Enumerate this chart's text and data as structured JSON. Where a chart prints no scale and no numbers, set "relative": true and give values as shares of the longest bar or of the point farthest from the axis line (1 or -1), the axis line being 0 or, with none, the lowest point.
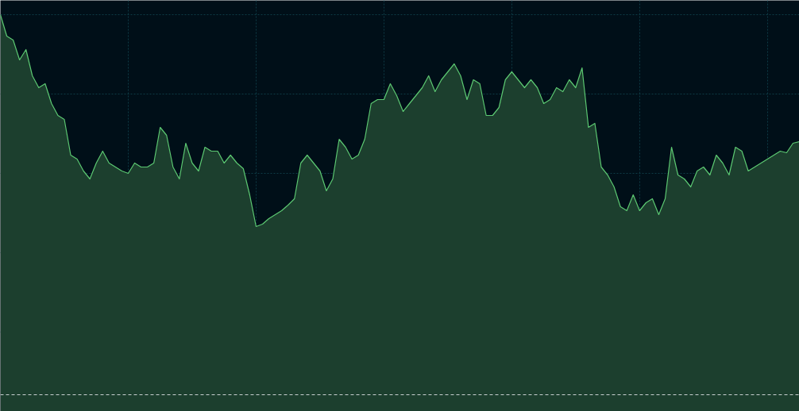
{
  "chart_data": {
    "type": "area",
    "relative": true,
    "grid": true,
    "categories": [
      null,
      null,
      null,
      null,
      null,
      null,
      null,
      null,
      null,
      null,
      null,
      null,
      null,
      null,
      null,
      null,
      null,
      null,
      null,
      null,
      null,
      null,
      null,
      null,
      null,
      null,
      null,
      null,
      null,
      null,
      null,
      null,
      null,
      null,
      null,
      null,
      null,
      null,
      null,
      null,
      null,
      null,
      null,
      null,
      null,
      null,
      null,
      null,
      null,
      null,
      null,
      null,
      null,
      null,
      null,
      null,
      null,
      null,
      null,
      null,
      null,
      null,
      null,
      null,
      null,
      null,
      null,
      null,
      null,
      null,
      null,
      null,
      null,
      null,
      null,
      null,
      null,
      null,
      null,
      null,
      null,
      null,
      null,
      null,
      null,
      null,
      null,
      null,
      null,
      null,
      null,
      null,
      null,
      null,
      null,
      null,
      null,
      null,
      null,
      null,
      null,
      null,
      null,
      null,
      null,
      null,
      null,
      null,
      null,
      null,
      null,
      null,
      null,
      null,
      null,
      null,
      null,
      null,
      null,
      null,
      null,
      null,
      null,
      null,
      null,
      null
    ],
    "series": [
      {
        "color": "#5cc872",
        "values": [
          1.0,
          0.946,
          0.936,
          0.886,
          0.912,
          0.846,
          0.816,
          0.826,
          0.776,
          0.746,
          0.736,
          0.646,
          0.636,
          0.606,
          0.586,
          0.626,
          0.656,
          0.626,
          0.616,
          0.606,
          0.6,
          0.626,
          0.616,
          0.616,
          0.626,
          0.716,
          0.696,
          0.616,
          0.586,
          0.676,
          0.626,
          0.606,
          0.666,
          0.656,
          0.656,
          0.626,
          0.646,
          0.626,
          0.612,
          0.546,
          0.466,
          0.472,
          0.486,
          0.496,
          0.506,
          0.52,
          0.536,
          0.626,
          0.646,
          0.626,
          0.606,
          0.556,
          0.586,
          0.686,
          0.666,
          0.636,
          0.646,
          0.686,
          0.776,
          0.786,
          0.786,
          0.826,
          0.796,
          0.756,
          0.776,
          0.796,
          0.816,
          0.846,
          0.806,
          0.836,
          0.856,
          0.876,
          0.846,
          0.786,
          0.836,
          0.826,
          0.746,
          0.746,
          0.766,
          0.836,
          0.856,
          0.836,
          0.816,
          0.836,
          0.816,
          0.776,
          0.786,
          0.816,
          0.806,
          0.836,
          0.816,
          0.866,
          0.716,
          0.726,
          0.616,
          0.596,
          0.566,
          0.516,
          0.506,
          0.546,
          0.506,
          0.526,
          0.536,
          0.496,
          0.536,
          0.666,
          0.596,
          0.586,
          0.566,
          0.606,
          0.616,
          0.596,
          0.646,
          0.626,
          0.596,
          0.666,
          0.656,
          0.606,
          0.616,
          0.626,
          0.636,
          0.646,
          0.656,
          0.652,
          0.676,
          0.68
        ]
      }
    ],
    "ref_lines": [
      {
        "axis": "y",
        "value": 0.042,
        "color": "#c8d0d0",
        "line_style": "dashed"
      }
    ]
  }
}
